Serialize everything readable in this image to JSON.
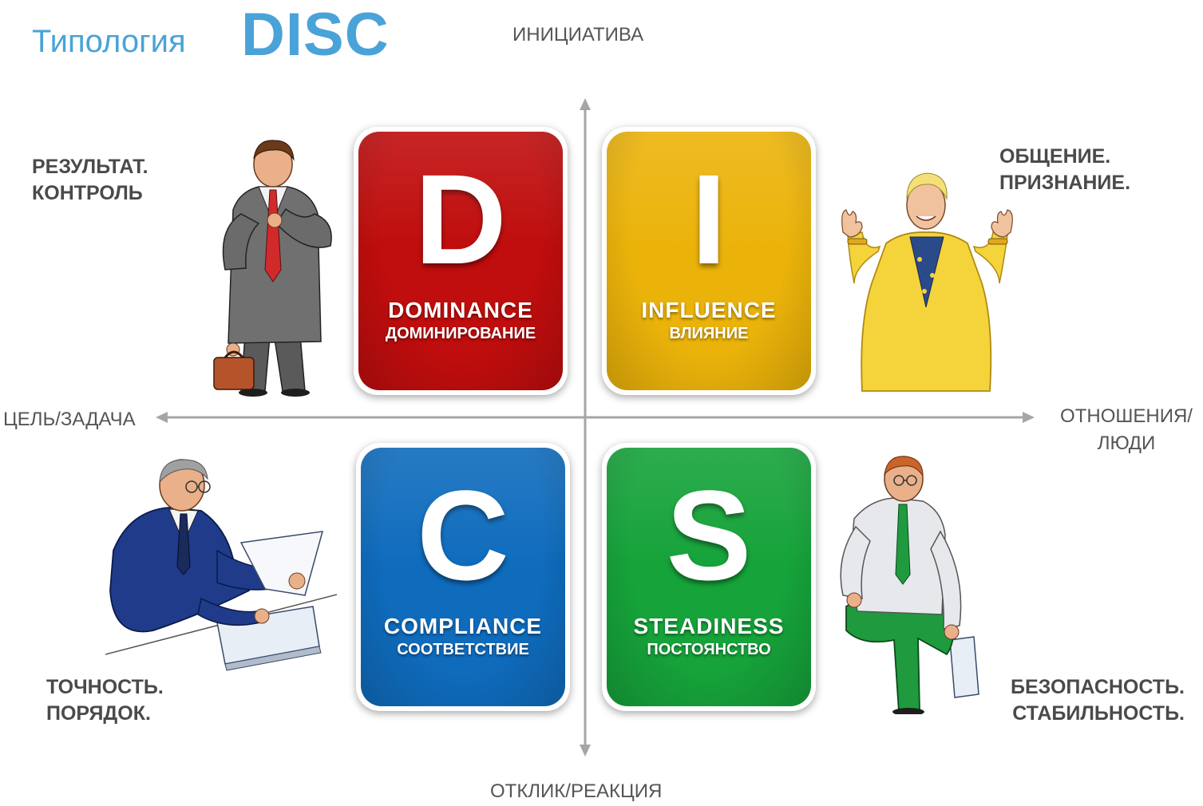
{
  "title": {
    "main": "Типология",
    "accent": "DISC",
    "color": "#4aa3d8"
  },
  "axes": {
    "top": "ИНИЦИАТИВА",
    "bottom": "ОТКЛИК/РЕАКЦИЯ",
    "left": "ЦЕЛЬ/ЗАДАЧА",
    "right_line1": "ОТНОШЕНИЯ/",
    "right_line2": "ЛЮДИ",
    "color": "#a6a6a6"
  },
  "quadrants": {
    "d": {
      "letter": "D",
      "name": "DOMINANCE",
      "sub": "ДОМИНИРОВАНИЕ",
      "color": "#c00d0d"
    },
    "i": {
      "letter": "I",
      "name": "INFLUENCE",
      "sub": "ВЛИЯНИЕ",
      "color": "#ebb30a"
    },
    "c": {
      "letter": "C",
      "name": "COMPLIANCE",
      "sub": "СООТВЕТСТВИЕ",
      "color": "#0f6cbd"
    },
    "s": {
      "letter": "S",
      "name": "STEADINESS",
      "sub": "ПОСТОЯНСТВО",
      "color": "#16a33a"
    }
  },
  "traits": {
    "d_line1": "РЕЗУЛЬТАТ.",
    "d_line2": "КОНТРОЛЬ",
    "i_line1": "ОБЩЕНИЕ.",
    "i_line2": "ПРИЗНАНИЕ.",
    "c_line1": "ТОЧНОСТЬ.",
    "c_line2": "ПОРЯДОК.",
    "s_line1": "БЕЗОПАСНОСТЬ.",
    "s_line2": "СТАБИЛЬНОСТЬ."
  },
  "figures": {
    "d": "businessman-checking-watch-illustration",
    "i": "woman-yellow-jacket-illustration",
    "c": "man-reading-documents-illustration",
    "s": "seated-man-green-tie-illustration"
  }
}
